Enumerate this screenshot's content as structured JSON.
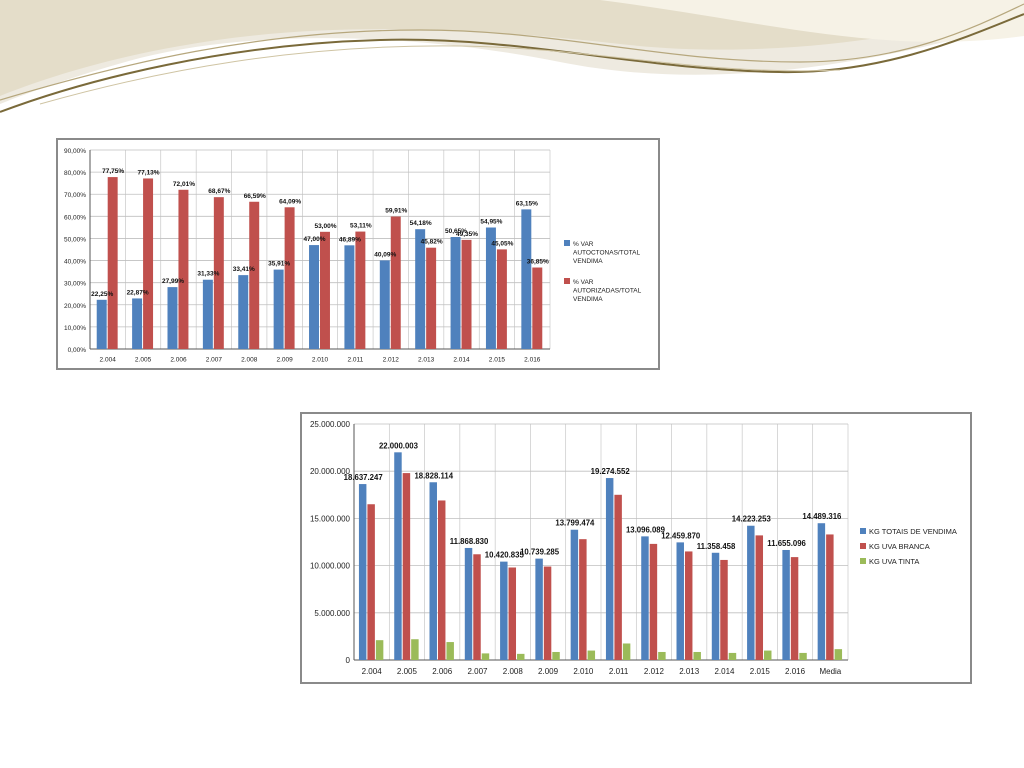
{
  "colors": {
    "blue": "#4f81bd",
    "red": "#c0504d",
    "green": "#9bbb59",
    "grid": "#bfbfbf",
    "wave_dark": "#7a6a3a",
    "wave_light": "#e9e3cf"
  },
  "chart_data": [
    {
      "type": "bar",
      "categories": [
        "2.004",
        "2.005",
        "2.006",
        "2.007",
        "2.008",
        "2.009",
        "2.010",
        "2.011",
        "2.012",
        "2.013",
        "2.014",
        "2.015",
        "2.016"
      ],
      "series": [
        {
          "name": "% VAR AUTOCTONAS/TOTAL VENDIMA",
          "color": "#4f81bd",
          "values": [
            22.25,
            22.87,
            27.99,
            31.33,
            33.41,
            35.91,
            47.0,
            46.89,
            40.09,
            54.18,
            50.65,
            54.95,
            63.15
          ],
          "labels": [
            "22,25%",
            "22,87%",
            "27,99%",
            "31,33%",
            "33,41%",
            "35,91%",
            "47,00%",
            "46,89%",
            "40,09%",
            "54,18%",
            "50,65%",
            "54,95%",
            "63,15%"
          ]
        },
        {
          "name": "% VAR AUTORIZADAS/TOTAL VENDIMA",
          "color": "#c0504d",
          "values": [
            77.75,
            77.13,
            72.01,
            68.67,
            66.59,
            64.09,
            53.0,
            53.11,
            59.91,
            45.82,
            49.35,
            45.05,
            36.85
          ],
          "labels": [
            "77,75%",
            "77,13%",
            "72,01%",
            "68,67%",
            "66,59%",
            "64,09%",
            "53,00%",
            "53,11%",
            "59,91%",
            "45,82%",
            "49,35%",
            "45,05%",
            "36,85%"
          ]
        }
      ],
      "ylim": [
        0,
        90
      ],
      "yticks": [
        0,
        10,
        20,
        30,
        40,
        50,
        60,
        70,
        80,
        90
      ],
      "ytick_labels": [
        "0,00%",
        "10,00%",
        "20,00%",
        "30,00%",
        "40,00%",
        "50,00%",
        "60,00%",
        "70,00%",
        "80,00%",
        "90,00%"
      ],
      "grid": true,
      "legend": "right"
    },
    {
      "type": "bar",
      "categories": [
        "2.004",
        "2.005",
        "2.006",
        "2.007",
        "2.008",
        "2.009",
        "2.010",
        "2.011",
        "2.012",
        "2.013",
        "2.014",
        "2.015",
        "2.016",
        "Media"
      ],
      "series": [
        {
          "name": "KG TOTAIS DE VENDIMA",
          "color": "#4f81bd",
          "values": [
            18637247,
            22000003,
            18828114,
            11868830,
            10420835,
            10739285,
            13799474,
            19274552,
            13096089,
            12459870,
            11358458,
            14223253,
            11655096,
            14489316
          ],
          "labels": [
            "18.637.247",
            "22.000.003",
            "18.828.114",
            "11.868.830",
            "10.420.835",
            "10.739.285",
            "13.799.474",
            "19.274.552",
            "13.096.089",
            "12.459.870",
            "11.358.458",
            "14.223.253",
            "11.655.096",
            "14.489.316"
          ]
        },
        {
          "name": "KG UVA BRANCA",
          "color": "#c0504d",
          "values": [
            16500000,
            19800000,
            16900000,
            11200000,
            9800000,
            9900000,
            12800000,
            17500000,
            12300000,
            11500000,
            10600000,
            13200000,
            10900000,
            13300000
          ]
        },
        {
          "name": "KG UVA TINTA",
          "color": "#9bbb59",
          "values": [
            2100000,
            2200000,
            1900000,
            700000,
            650000,
            850000,
            1000000,
            1750000,
            850000,
            850000,
            750000,
            1000000,
            750000,
            1150000
          ]
        }
      ],
      "ylim": [
        0,
        25000000
      ],
      "yticks": [
        0,
        5000000,
        10000000,
        15000000,
        20000000,
        25000000
      ],
      "ytick_labels": [
        "0",
        "5.000.000",
        "10.000.000",
        "15.000.000",
        "20.000.000",
        "25.000.000"
      ],
      "grid": true,
      "legend": "right"
    }
  ]
}
